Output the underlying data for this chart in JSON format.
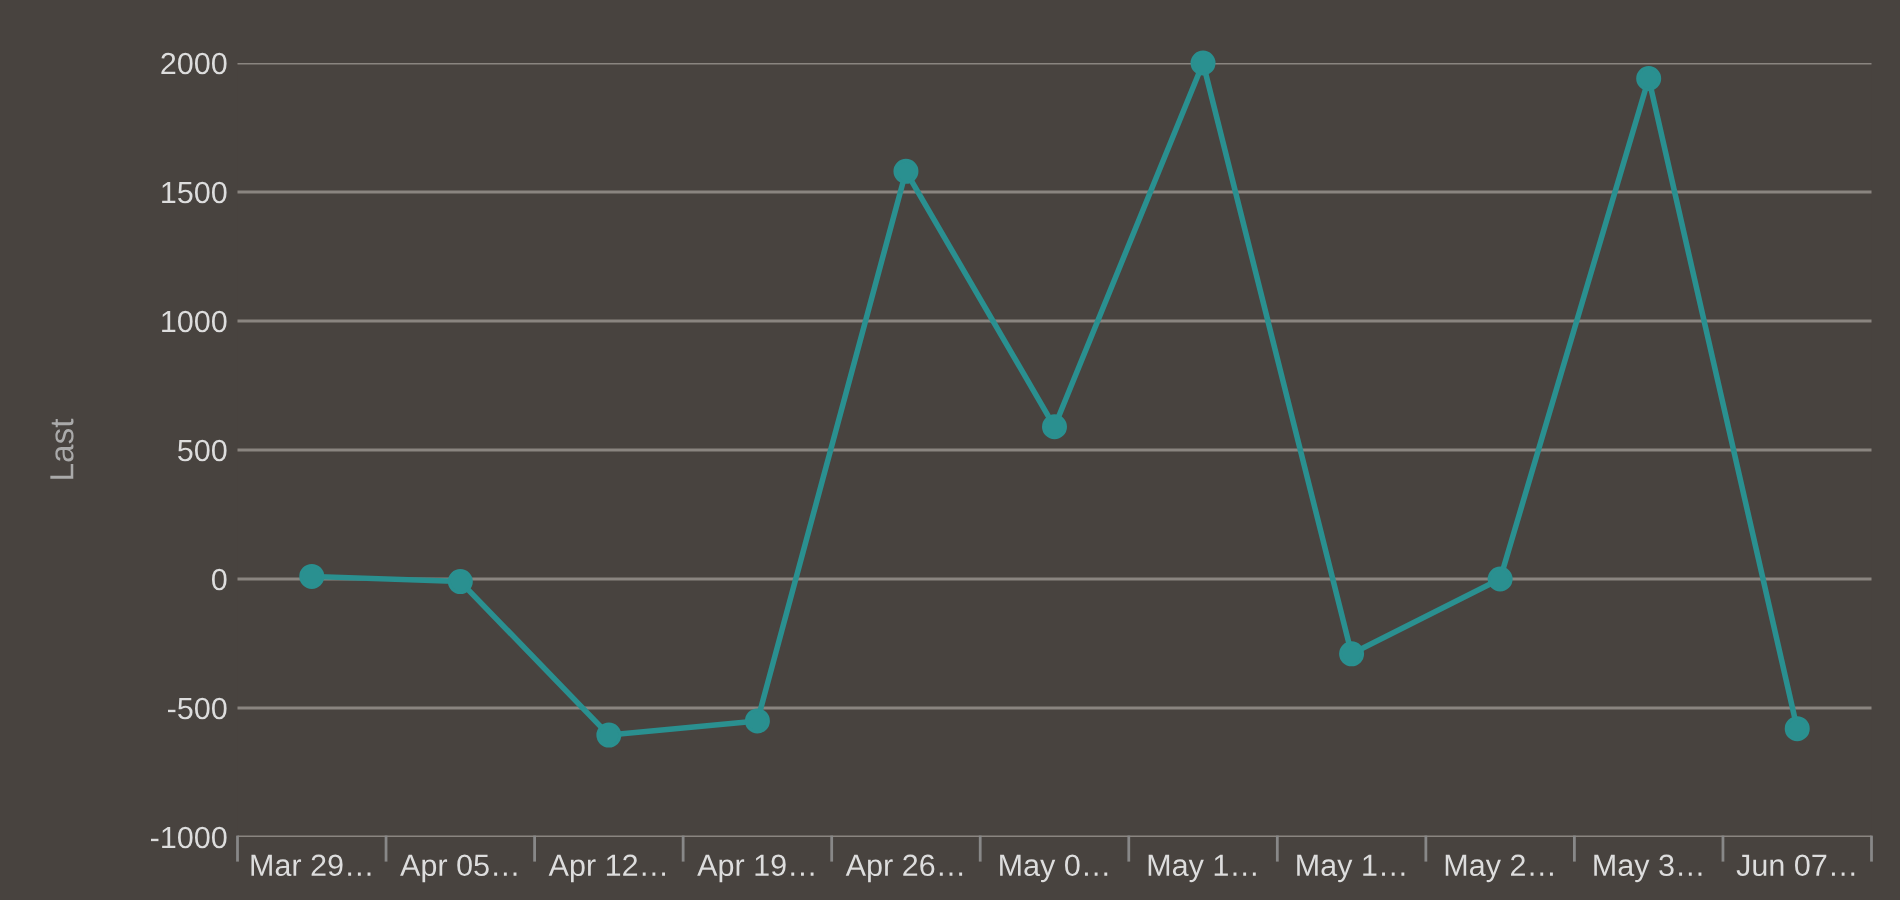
{
  "chart_data": {
    "type": "line",
    "ylabel": "Last",
    "categories": [
      "Mar 29…",
      "Apr 05…",
      "Apr 12…",
      "Apr 19…",
      "Apr 26…",
      "May 0…",
      "May 1…",
      "May 1…",
      "May 2…",
      "May 3…",
      "Jun 07…"
    ],
    "series": [
      {
        "color": "#2a9090",
        "values": [
          10,
          -10,
          -605,
          -550,
          1580,
          590,
          2000,
          -290,
          0,
          1940,
          -580
        ]
      }
    ],
    "ylim": [
      -1000,
      2000
    ],
    "yticks": [
      -1000,
      -500,
      0,
      500,
      1000,
      1500,
      2000
    ],
    "grid": "y",
    "marker": "circle",
    "line_style": "solid",
    "legend": false
  }
}
